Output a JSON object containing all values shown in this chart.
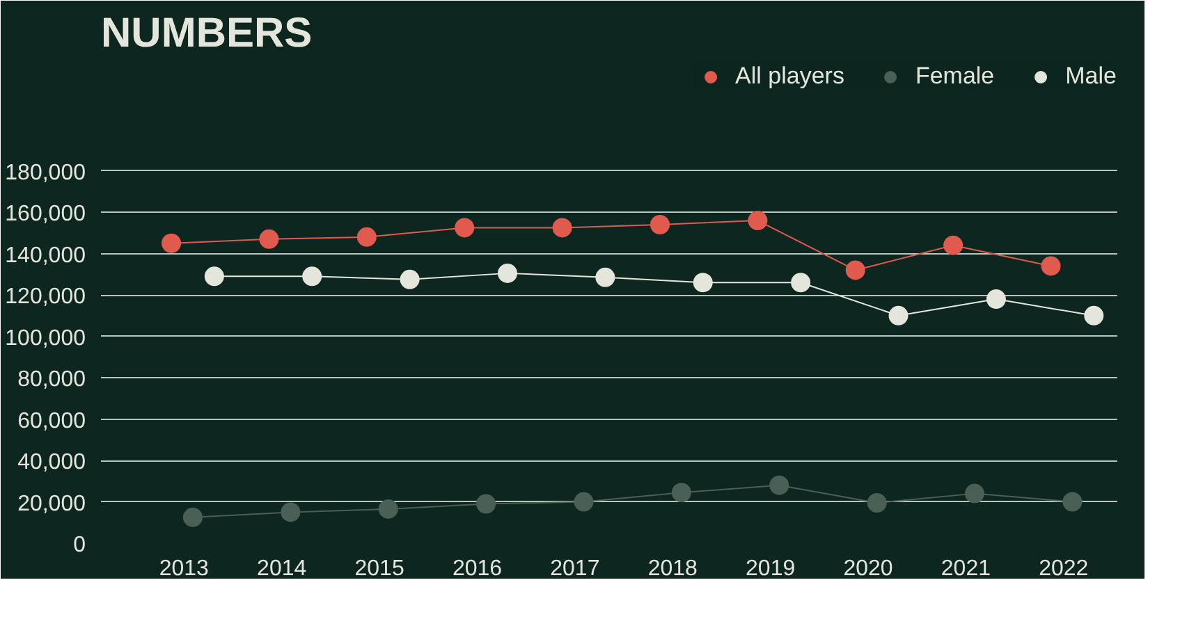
{
  "chart_data": {
    "type": "line",
    "title": "NUMBERS",
    "categories": [
      "2013",
      "2014",
      "2015",
      "2016",
      "2017",
      "2018",
      "2019",
      "2020",
      "2021",
      "2022"
    ],
    "series": [
      {
        "name": "All players",
        "color": "#e05a4e",
        "values": [
          145000,
          147000,
          148000,
          152500,
          152500,
          154000,
          156000,
          132000,
          144000,
          134000
        ]
      },
      {
        "name": "Female",
        "color": "#4a5f56",
        "values": [
          12500,
          15000,
          16500,
          19000,
          20000,
          24500,
          28000,
          19500,
          24000,
          20000
        ]
      },
      {
        "name": "Male",
        "color": "#e4e6dc",
        "values": [
          129000,
          129000,
          127500,
          130500,
          128500,
          126000,
          126000,
          110000,
          118000,
          110000
        ]
      }
    ],
    "ylim": [
      0,
      232000
    ],
    "yticks": [
      {
        "value": 0,
        "label": "0"
      },
      {
        "value": 20000,
        "label": "20,000"
      },
      {
        "value": 40000,
        "label": "40,000"
      },
      {
        "value": 60000,
        "label": "60,000"
      },
      {
        "value": 80000,
        "label": "80,000"
      },
      {
        "value": 100000,
        "label": "100,000"
      },
      {
        "value": 120000,
        "label": "120,000"
      },
      {
        "value": 140000,
        "label": "140,000"
      },
      {
        "value": 160000,
        "label": "160,000"
      },
      {
        "value": 180000,
        "label": "180,000"
      }
    ],
    "grid": "y",
    "legend": "top right",
    "marker": "circle",
    "line_style": "solid"
  }
}
